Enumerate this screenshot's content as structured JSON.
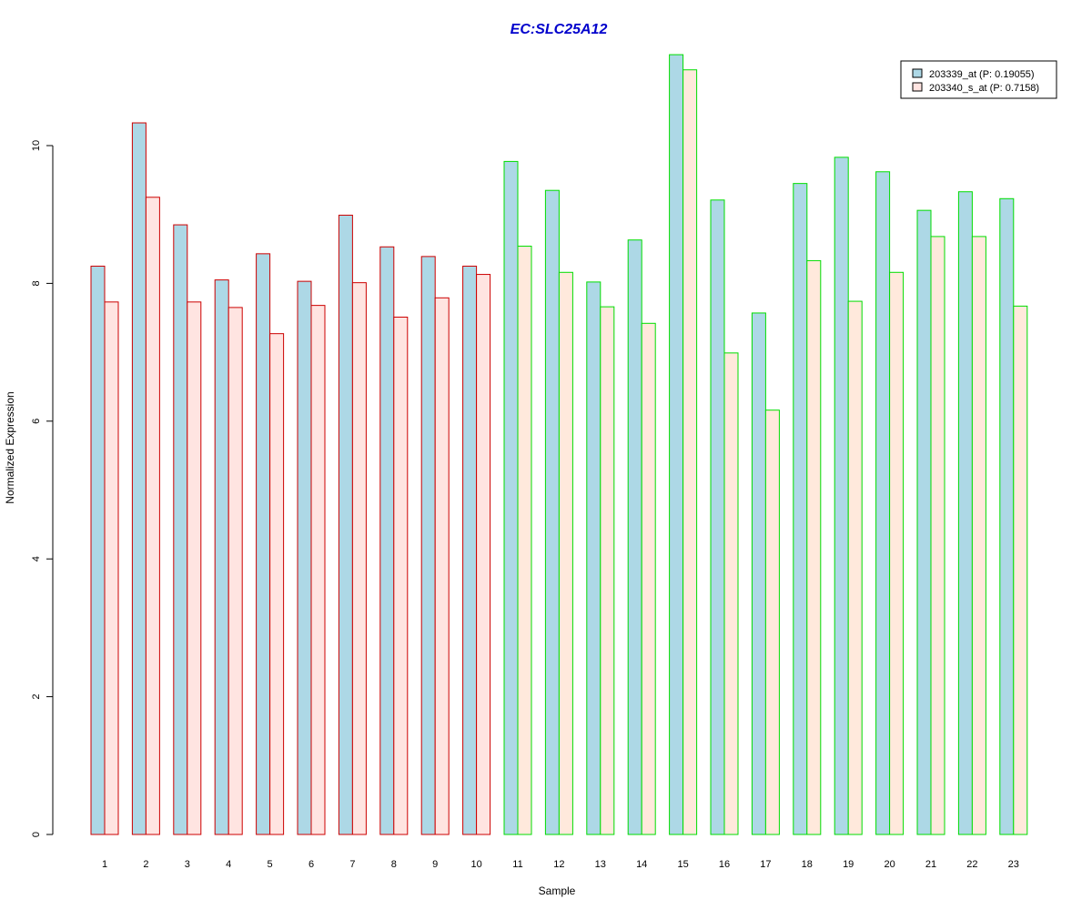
{
  "chart_data": {
    "type": "bar",
    "title": "EC:SLC25A12",
    "xlabel": "Sample",
    "ylabel": "Normalized Expression",
    "ylim": [
      0,
      11.5
    ],
    "yticks": [
      0,
      2,
      4,
      6,
      8,
      10
    ],
    "grid": false,
    "legend_position": "top-right",
    "categories": [
      "1",
      "2",
      "3",
      "4",
      "5",
      "6",
      "7",
      "8",
      "9",
      "10",
      "11",
      "12",
      "13",
      "14",
      "15",
      "16",
      "17",
      "18",
      "19",
      "20",
      "21",
      "22",
      "23"
    ],
    "series": [
      {
        "name": "203339_at (P: 0.19055)",
        "fill": "#add8e6",
        "values": [
          8.25,
          10.33,
          8.85,
          8.05,
          8.43,
          8.03,
          8.99,
          8.53,
          8.39,
          8.25,
          9.77,
          9.35,
          8.02,
          8.63,
          11.32,
          9.21,
          7.57,
          9.45,
          9.83,
          9.62,
          9.06,
          9.33,
          9.23
        ]
      },
      {
        "name": "203340_s_at (P: 0.7158)",
        "fill_group1": "#ffe4e1",
        "fill_group2": "#ffe9dc",
        "values": [
          7.73,
          9.25,
          7.73,
          7.65,
          7.27,
          7.68,
          8.01,
          7.51,
          7.79,
          8.13,
          8.54,
          8.16,
          7.66,
          7.42,
          11.1,
          6.99,
          6.16,
          8.33,
          7.74,
          8.16,
          8.68,
          8.68,
          7.67
        ]
      }
    ],
    "group_borders": [
      "#cc0000",
      "#cc0000",
      "#cc0000",
      "#cc0000",
      "#cc0000",
      "#cc0000",
      "#cc0000",
      "#cc0000",
      "#cc0000",
      "#cc0000",
      "#00dd00",
      "#00dd00",
      "#00dd00",
      "#00dd00",
      "#00dd00",
      "#00dd00",
      "#00dd00",
      "#00dd00",
      "#00dd00",
      "#00dd00",
      "#00dd00",
      "#00dd00",
      "#00dd00"
    ],
    "title_color": "#0000cc"
  }
}
